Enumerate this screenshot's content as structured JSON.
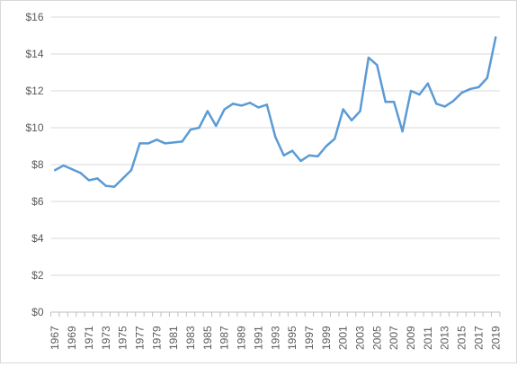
{
  "chart_data": {
    "type": "line",
    "title": "",
    "xlabel": "",
    "ylabel": "",
    "ylim": [
      0,
      16
    ],
    "y_ticks": [
      {
        "value": 0,
        "label": "$0"
      },
      {
        "value": 2,
        "label": "$2"
      },
      {
        "value": 4,
        "label": "$4"
      },
      {
        "value": 6,
        "label": "$6"
      },
      {
        "value": 8,
        "label": "$8"
      },
      {
        "value": 10,
        "label": "$10"
      },
      {
        "value": 12,
        "label": "$12"
      },
      {
        "value": 14,
        "label": "$14"
      },
      {
        "value": 16,
        "label": "$16"
      }
    ],
    "x_ticks": [
      "1967",
      "1969",
      "1971",
      "1973",
      "1975",
      "1977",
      "1979",
      "1981",
      "1983",
      "1985",
      "1987",
      "1989",
      "1991",
      "1993",
      "1995",
      "1997",
      "1999",
      "2001",
      "2003",
      "2005",
      "2007",
      "2009",
      "2011",
      "2013",
      "2015",
      "2017",
      "2019"
    ],
    "grid": {
      "horizontal": true,
      "vertical": false
    },
    "legend": "none",
    "line_color": "#5b9bd5",
    "x": [
      1967,
      1968,
      1969,
      1970,
      1971,
      1972,
      1973,
      1974,
      1975,
      1976,
      1977,
      1978,
      1979,
      1980,
      1981,
      1982,
      1983,
      1984,
      1985,
      1986,
      1987,
      1988,
      1989,
      1990,
      1991,
      1992,
      1993,
      1994,
      1995,
      1996,
      1997,
      1998,
      1999,
      2000,
      2001,
      2002,
      2003,
      2004,
      2005,
      2006,
      2007,
      2008,
      2009,
      2010,
      2011,
      2012,
      2013,
      2014,
      2015,
      2016,
      2017,
      2018,
      2019
    ],
    "series": [
      {
        "values": [
          7.7,
          7.95,
          7.75,
          7.55,
          7.15,
          7.25,
          6.85,
          6.8,
          7.25,
          7.7,
          9.15,
          9.15,
          9.35,
          9.15,
          9.2,
          9.25,
          9.9,
          10.0,
          10.9,
          10.1,
          11.0,
          11.3,
          11.2,
          11.35,
          11.1,
          11.25,
          9.5,
          8.5,
          8.75,
          8.2,
          8.5,
          8.45,
          9.0,
          9.4,
          11.0,
          10.4,
          10.9,
          13.8,
          13.4,
          11.4,
          11.4,
          9.8,
          12.0,
          11.8,
          12.4,
          11.3,
          11.15,
          11.45,
          11.9,
          12.1,
          12.2,
          12.7,
          14.9
        ]
      }
    ]
  }
}
